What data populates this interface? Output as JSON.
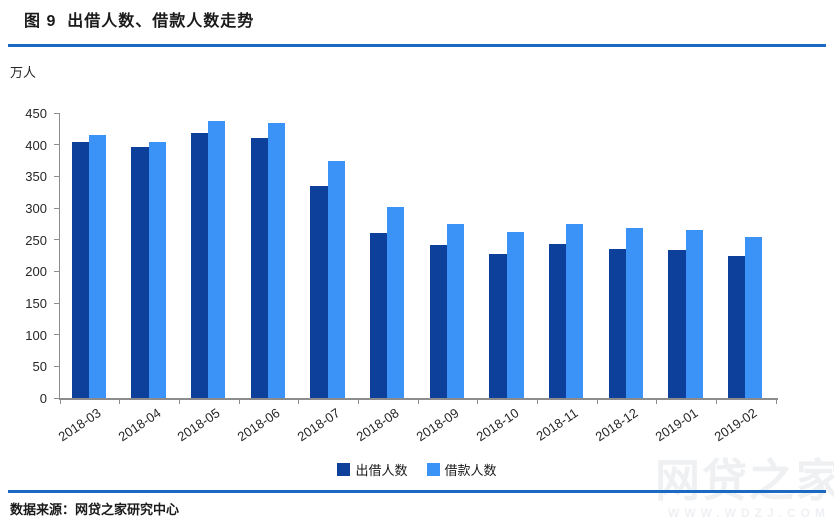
{
  "header": {
    "title": "图 9  出借人数、借款人数走势"
  },
  "chart_data": {
    "type": "bar",
    "title": "图 9 出借人数、借款人数走势",
    "ylabel": "万人",
    "xlabel": "",
    "categories": [
      "2018-03",
      "2018-04",
      "2018-05",
      "2018-06",
      "2018-07",
      "2018-08",
      "2018-09",
      "2018-10",
      "2018-11",
      "2018-12",
      "2019-01",
      "2019-02"
    ],
    "series": [
      {
        "name": "出借人数",
        "color": "#0d409b",
        "values": [
          405,
          396,
          418,
          410,
          335,
          260,
          242,
          228,
          243,
          235,
          233,
          224
        ]
      },
      {
        "name": "借款人数",
        "color": "#3b93f7",
        "values": [
          416,
          405,
          437,
          435,
          374,
          301,
          275,
          262,
          275,
          268,
          265,
          255
        ]
      }
    ],
    "ylim": [
      0,
      450
    ],
    "ytick_step": 50,
    "grid": false,
    "legend_position": "bottom"
  },
  "footer": {
    "source": "数据来源：网贷之家研究中心"
  },
  "watermark": {
    "brand": "网贷之家",
    "url_text": "WWW.WDZJ.COM"
  },
  "colors": {
    "accent_line": "#1a6ac4",
    "axis": "#8c8c8c",
    "tick_label": "#262626",
    "series_dark": "#0d409b",
    "series_light": "#3b93f7"
  }
}
